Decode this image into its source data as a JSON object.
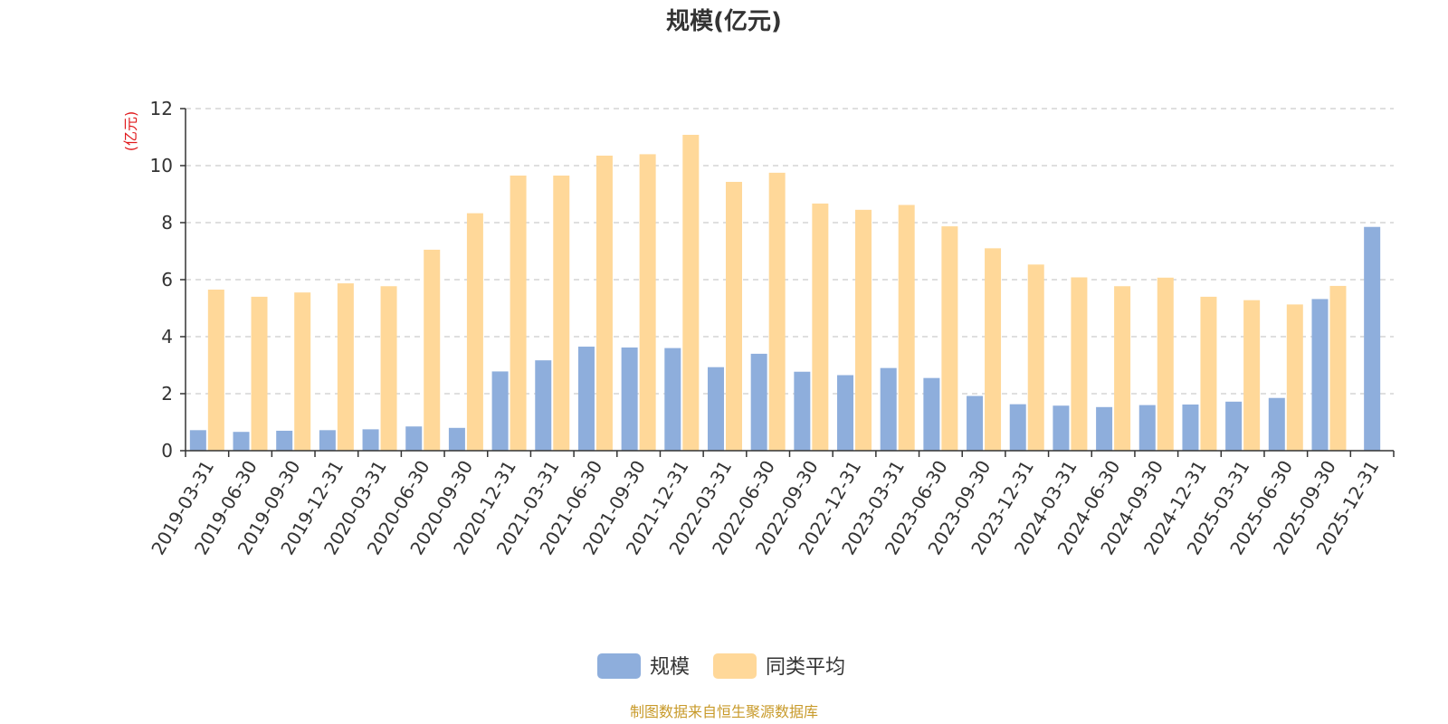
{
  "chart_data": {
    "type": "bar",
    "title": "规模(亿元)",
    "ylabel": "(亿元)",
    "xlabel": "",
    "ylim": [
      0,
      12
    ],
    "yticks": [
      0,
      2,
      4,
      6,
      8,
      10,
      12
    ],
    "grid": true,
    "legend_position": "bottom",
    "categories": [
      "2019-03-31",
      "2019-06-30",
      "2019-09-30",
      "2019-12-31",
      "2020-03-31",
      "2020-06-30",
      "2020-09-30",
      "2020-12-31",
      "2021-03-31",
      "2021-06-30",
      "2021-09-30",
      "2021-12-31",
      "2022-03-31",
      "2022-06-30",
      "2022-09-30",
      "2022-12-31",
      "2023-03-31",
      "2023-06-30",
      "2023-09-30",
      "2023-12-31",
      "2024-03-31",
      "2024-06-30",
      "2024-09-30",
      "2024-12-31",
      "2025-03-31",
      "2025-06-30",
      "2025-09-30",
      "2025-12-31"
    ],
    "series": [
      {
        "name": "规模",
        "color": "#8EAEDC",
        "values": [
          0.72,
          0.66,
          0.7,
          0.72,
          0.75,
          0.85,
          0.8,
          2.78,
          3.17,
          3.65,
          3.62,
          3.6,
          2.93,
          3.4,
          2.77,
          2.65,
          2.9,
          2.55,
          1.92,
          1.63,
          1.58,
          1.53,
          1.6,
          1.62,
          1.72,
          1.85,
          5.32,
          7.85
        ]
      },
      {
        "name": "同类平均",
        "color": "#FFD899",
        "values": [
          5.65,
          5.4,
          5.55,
          5.87,
          5.77,
          7.05,
          8.33,
          9.65,
          9.65,
          10.35,
          10.4,
          11.08,
          9.43,
          9.75,
          8.67,
          8.45,
          8.62,
          7.87,
          7.1,
          6.53,
          6.08,
          5.77,
          6.07,
          5.4,
          5.28,
          5.13,
          5.78,
          null
        ]
      }
    ],
    "source": "制图数据来自恒生聚源数据库",
    "colors": {
      "axis": "#333333",
      "grid": "#cccccc",
      "ylabel": "#e0191c",
      "source": "#c89a2a"
    }
  }
}
